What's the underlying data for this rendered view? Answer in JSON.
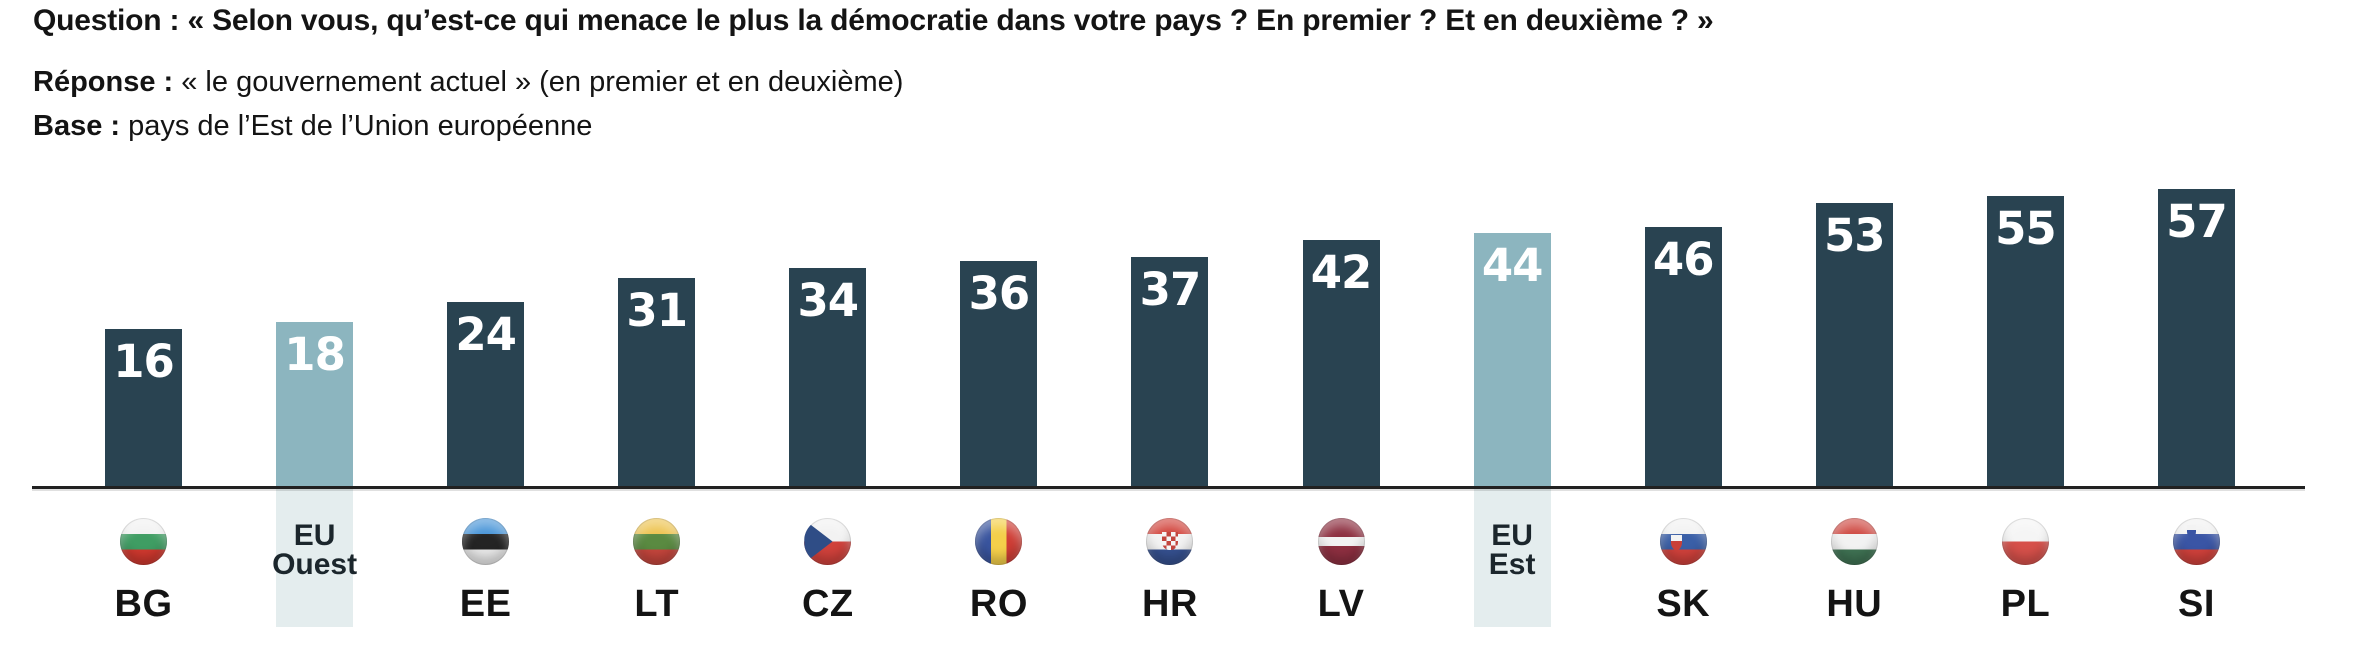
{
  "header": {
    "question_label": "Question :",
    "question_text": "« Selon vous, qu’est-ce qui menace le plus la démocratie dans votre pays ? En premier ? Et en deuxième ? »",
    "reponse_label": "Réponse :",
    "reponse_text": "« le gouvernement actuel » (en premier et en deuxième)",
    "base_label": "Base :",
    "base_text": "pays de l’Est de l’Union européenne"
  },
  "colors": {
    "background": "#ffffff",
    "bar_dark": "#294351",
    "bar_highlight": "#8cb5bf",
    "band_highlight": "#e4edee",
    "axis_line": "#212121",
    "value_label": "#ffffff",
    "text": "#141414"
  },
  "chart_data": {
    "type": "bar",
    "title": "",
    "xlabel": "",
    "ylabel": "",
    "unit": "%",
    "grid": false,
    "y_axis_shown": false,
    "legend_shown": false,
    "categories": [
      "BG",
      "EU Ouest",
      "EE",
      "LT",
      "CZ",
      "RO",
      "HR",
      "LV",
      "EU Est",
      "SK",
      "HU",
      "PL",
      "SI"
    ],
    "values": [
      16,
      18,
      24,
      31,
      34,
      36,
      37,
      42,
      44,
      46,
      53,
      55,
      57
    ],
    "highlighted_categories": [
      "EU Ouest",
      "EU Est"
    ],
    "bars": [
      {
        "code": "BG",
        "value": 16,
        "kind": "country",
        "flag": "BG"
      },
      {
        "code": "EU Ouest",
        "value": 18,
        "kind": "aggregate",
        "label_lines": [
          "EU",
          "Ouest"
        ]
      },
      {
        "code": "EE",
        "value": 24,
        "kind": "country",
        "flag": "EE"
      },
      {
        "code": "LT",
        "value": 31,
        "kind": "country",
        "flag": "LT"
      },
      {
        "code": "CZ",
        "value": 34,
        "kind": "country",
        "flag": "CZ"
      },
      {
        "code": "RO",
        "value": 36,
        "kind": "country",
        "flag": "RO"
      },
      {
        "code": "HR",
        "value": 37,
        "kind": "country",
        "flag": "HR"
      },
      {
        "code": "LV",
        "value": 42,
        "kind": "country",
        "flag": "LV"
      },
      {
        "code": "EU Est",
        "value": 44,
        "kind": "aggregate",
        "label_lines": [
          "EU",
          "Est"
        ]
      },
      {
        "code": "SK",
        "value": 46,
        "kind": "country",
        "flag": "SK"
      },
      {
        "code": "HU",
        "value": 53,
        "kind": "country",
        "flag": "HU"
      },
      {
        "code": "PL",
        "value": 55,
        "kind": "country",
        "flag": "PL"
      },
      {
        "code": "SI",
        "value": 57,
        "kind": "country",
        "flag": "SI"
      }
    ],
    "flags": {
      "BG": {
        "name": "bulgaria-flag-icon",
        "gradient": "linear-gradient(180deg, #f2f2f2 0% 34%, #3f9d63 34% 67%, #cf382e 67% 100%)"
      },
      "EE": {
        "name": "estonia-flag-icon",
        "gradient": "linear-gradient(180deg, #4a96d8 0% 34%, #242424 34% 67%, #e9e9e9 67% 100%)"
      },
      "LT": {
        "name": "lithuania-flag-icon",
        "gradient": "linear-gradient(180deg, #edc452 0% 34%, #5a8a41 34% 67%, #c4453c 67% 100%)"
      },
      "CZ": {
        "name": "czechia-flag-icon",
        "gradient": "linear-gradient(180deg, #f2f2f2 0% 50%, #d0413b 50% 100%)",
        "overlays": [
          {
            "name": "czechia-triangle",
            "left": "0%",
            "top": "0%",
            "width": "100%",
            "height": "100%",
            "background": "#2f4d86",
            "clip": "polygon(0% 4%, 60% 50%, 0% 96%)"
          }
        ]
      },
      "RO": {
        "name": "romania-flag-icon",
        "gradient": "linear-gradient(90deg, #39549e 0% 34%, #f4cf4a 34% 67%, #cf3d35 67% 100%)"
      },
      "HR": {
        "name": "croatia-flag-icon",
        "gradient": "linear-gradient(180deg, #d2453d 0% 34%, #f2f2f2 34% 67%, #35508f 67% 100%)",
        "overlays": [
          {
            "name": "croatia-checkerboard-crest",
            "left": "33%",
            "top": "30%",
            "width": "34%",
            "height": "38%",
            "background": "repeating-conic-gradient(#c2453e 0% 25%, #f5f5f5 0% 50%)",
            "size": "9px 9px",
            "radius": "0 0 45% 45%"
          }
        ]
      },
      "LV": {
        "name": "latvia-flag-icon",
        "gradient": "linear-gradient(180deg, #8d2f40 0% 40%, #f2f2f2 40% 60%, #8d2f40 60% 100%)"
      },
      "SK": {
        "name": "slovakia-flag-icon",
        "gradient": "linear-gradient(180deg, #f2f2f2 0% 34%, #3a5fa7 34% 67%, #d0413b 67% 100%)",
        "overlays": [
          {
            "name": "slovakia-crest",
            "left": "24%",
            "top": "36%",
            "width": "24%",
            "height": "32%",
            "background": "linear-gradient(180deg, #f3f3f3 0% 40%, #c94038 40% 100%)",
            "radius": "0 0 50% 50%"
          }
        ]
      },
      "HU": {
        "name": "hungary-flag-icon",
        "gradient": "linear-gradient(180deg, #cf4a43 0% 34%, #f2f2f2 34% 67%, #3f7253 67% 100%)"
      },
      "PL": {
        "name": "poland-flag-icon",
        "gradient": "linear-gradient(180deg, #f5f5f5 0% 50%, #d6504a 50% 100%)"
      },
      "SI": {
        "name": "slovenia-flag-icon",
        "gradient": "linear-gradient(180deg, #f2f2f2 0% 34%, #3a55a5 34% 67%, #d0413b 67% 100%)",
        "overlays": [
          {
            "name": "slovenia-crest",
            "left": "30%",
            "top": "14%",
            "width": "20%",
            "height": "28%",
            "background": "linear-gradient(180deg, #f3f3f3 0% 38%, #3a55a5 38% 100%)",
            "radius": "0 0 50% 50%"
          }
        ]
      }
    }
  }
}
